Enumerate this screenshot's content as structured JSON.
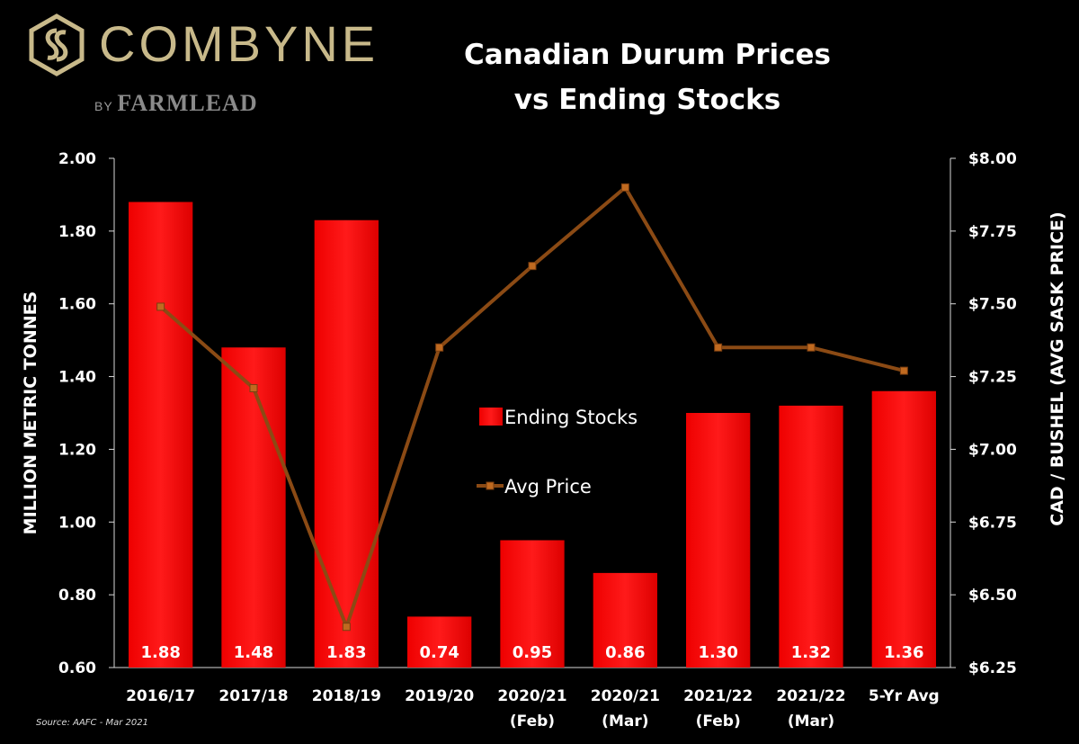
{
  "brand": {
    "name": "COMBYNE",
    "by": "BY",
    "partner": "FARMLEAD",
    "color": "#c8b98a"
  },
  "source": "Source: AAFC - Mar 2021",
  "chart_data": {
    "type": "bar",
    "title_line1": "Canadian Durum Prices",
    "title_line2": "vs Ending Stocks",
    "categories": [
      [
        "2016/17"
      ],
      [
        "2017/18"
      ],
      [
        "2018/19"
      ],
      [
        "2019/20"
      ],
      [
        "2020/21",
        "(Feb)"
      ],
      [
        "2020/21",
        "(Mar)"
      ],
      [
        "2021/22",
        "(Feb)"
      ],
      [
        "2021/22",
        "(Mar)"
      ],
      [
        "5-Yr Avg"
      ]
    ],
    "ylabel_left": "MILLION METRIC TONNES",
    "ylabel_right": "CAD / BUSHEL (AVG SASK PRICE)",
    "ylim_left": [
      0.6,
      2.0
    ],
    "ylim_right": [
      6.25,
      8.0
    ],
    "yticks_left": [
      "0.60",
      "0.80",
      "1.00",
      "1.20",
      "1.40",
      "1.60",
      "1.80",
      "2.00"
    ],
    "yticks_right": [
      "$6.25",
      "$6.50",
      "$6.75",
      "$7.00",
      "$7.25",
      "$7.50",
      "$7.75",
      "$8.00"
    ],
    "series": [
      {
        "name": "Ending Stocks",
        "type": "bar",
        "axis": "left",
        "color": "#ff0000",
        "values": [
          1.88,
          1.48,
          1.83,
          0.74,
          0.95,
          0.86,
          1.3,
          1.32,
          1.36
        ],
        "labels": [
          "1.88",
          "1.48",
          "1.83",
          "0.74",
          "0.95",
          "0.86",
          "1.30",
          "1.32",
          "1.36"
        ]
      },
      {
        "name": "Avg Price",
        "type": "line",
        "axis": "right",
        "color": "#8b4a14",
        "values": [
          7.49,
          7.21,
          6.39,
          7.35,
          7.63,
          7.9,
          7.35,
          7.35,
          7.27
        ]
      }
    ],
    "legend_position": "center"
  }
}
